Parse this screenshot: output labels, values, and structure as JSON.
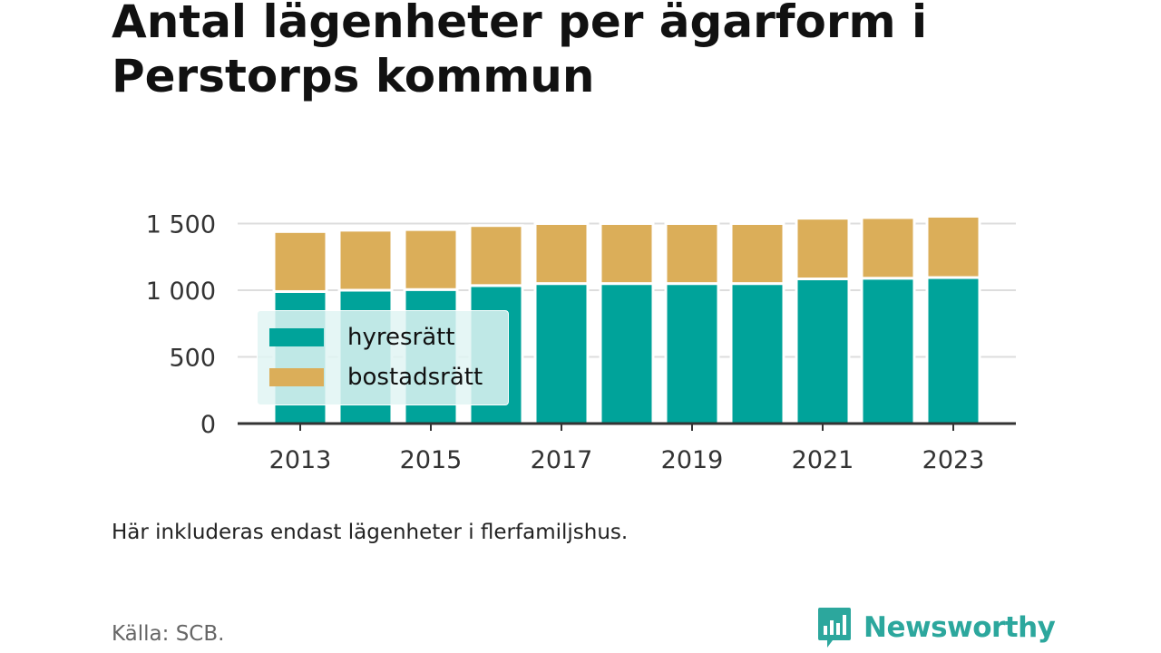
{
  "title": "Antal lägenheter per ägarform i Perstorps kommun",
  "note": "Här inkluderas endast lägenheter i flerfamiljshus.",
  "source": "Källa: SCB.",
  "brand": {
    "name": "Newsworthy",
    "color": "#2ca79d",
    "icon": "bar-chart-speech-bubble-icon"
  },
  "colors": {
    "hyresratt": "#00a39a",
    "bostadsratt": "#dbae59",
    "grid": "#dddddd",
    "axis": "#333333"
  },
  "chart_data": {
    "type": "bar",
    "stacked": true,
    "x": [
      2013,
      2014,
      2015,
      2016,
      2017,
      2018,
      2019,
      2020,
      2021,
      2022,
      2023
    ],
    "x_tick_labels": [
      "2013",
      "2015",
      "2017",
      "2019",
      "2021",
      "2023"
    ],
    "y_ticks": [
      0,
      500,
      1000,
      1500
    ],
    "y_tick_labels": [
      "0",
      "500",
      "1 000",
      "1 500"
    ],
    "ylim": [
      0,
      1550
    ],
    "grid": true,
    "legend_position": "bottom-left",
    "series": [
      {
        "name": "hyresrätt",
        "values": [
          990,
          1000,
          1005,
          1035,
          1050,
          1050,
          1050,
          1050,
          1085,
          1090,
          1095
        ]
      },
      {
        "name": "bostadsrätt",
        "values": [
          450,
          450,
          450,
          450,
          450,
          450,
          450,
          450,
          455,
          455,
          460
        ]
      }
    ]
  }
}
